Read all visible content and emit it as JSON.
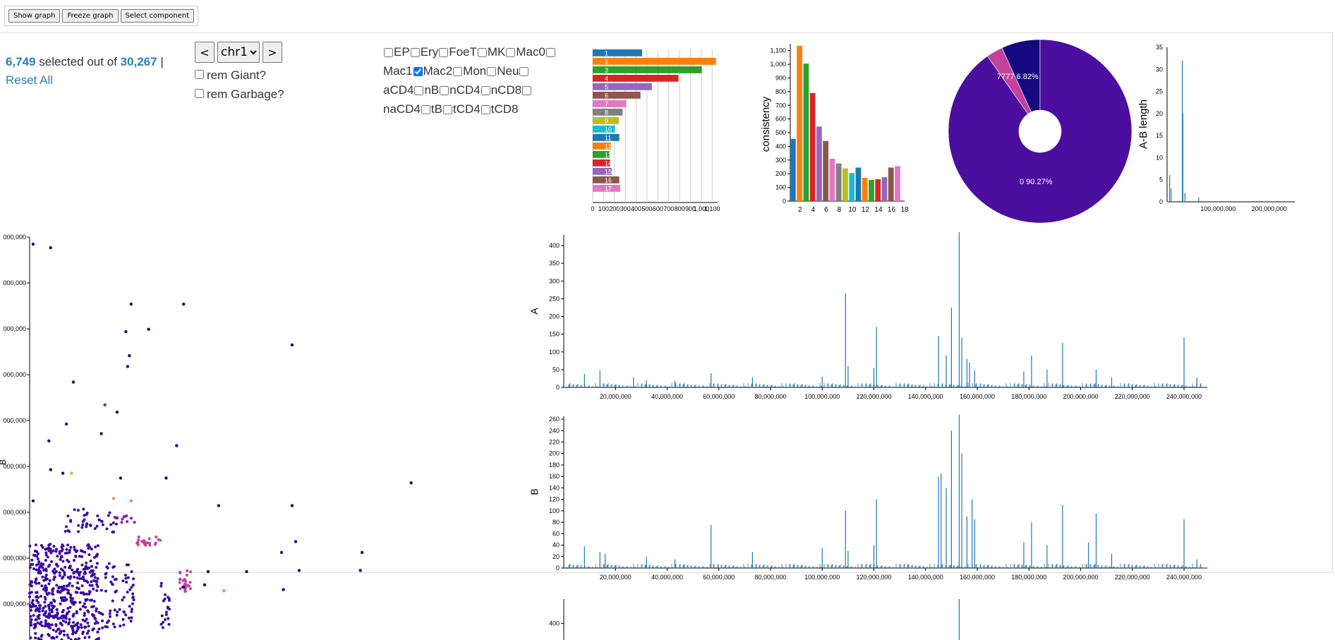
{
  "toolbar": {
    "show_graph": "Show graph",
    "freeze_graph": "Freeze graph",
    "select_component": "Select component"
  },
  "selection": {
    "selected": "6,749",
    "mid": "selected out of",
    "total": "30,267",
    "sep": "|",
    "reset": "Reset All"
  },
  "chrom": {
    "prev": "<",
    "next": ">",
    "value": "chr1"
  },
  "filters": [
    {
      "label": "rem Giant?",
      "checked": false
    },
    {
      "label": "rem Garbage?",
      "checked": false
    }
  ],
  "cell_types": [
    {
      "label": "EP",
      "checked": false
    },
    {
      "label": "Ery",
      "checked": false
    },
    {
      "label": "FoeT",
      "checked": false
    },
    {
      "label": "MK",
      "checked": false
    },
    {
      "label": "Mac0",
      "checked": false
    },
    {
      "label": "Mac1",
      "checked": false
    },
    {
      "label": "Mac2",
      "checked": true
    },
    {
      "label": "Mon",
      "checked": false
    },
    {
      "label": "Neu",
      "checked": false
    },
    {
      "label": "aCD4",
      "checked": false
    },
    {
      "label": "nB",
      "checked": false
    },
    {
      "label": "nCD4",
      "checked": false
    },
    {
      "label": "nCD8",
      "checked": false
    },
    {
      "label": "naCD4",
      "checked": false
    },
    {
      "label": "tB",
      "checked": false
    },
    {
      "label": "tCD4",
      "checked": false
    },
    {
      "label": "tCD8",
      "checked": false
    }
  ],
  "colors": {
    "accent": "#2a7fba",
    "bar_series": "#1f77b4",
    "pie_main": "#4b0e9e",
    "pie_second": "#150a80",
    "palette": [
      "#1f77b4",
      "#ff7f0e",
      "#2ca02c",
      "#d62728",
      "#9467bd",
      "#8c564b",
      "#e377c2",
      "#7f7f7f",
      "#bcbd22",
      "#17becf"
    ]
  },
  "chart_data": [
    {
      "type": "bar",
      "orientation": "horizontal",
      "categories": [
        "1",
        "2",
        "3",
        "4",
        "5",
        "6",
        "7",
        "8",
        "9",
        "10",
        "11",
        "12",
        "13",
        "14",
        "15",
        "16",
        "17"
      ],
      "values": [
        455,
        1135,
        1005,
        790,
        545,
        440,
        310,
        275,
        240,
        205,
        245,
        170,
        155,
        160,
        175,
        245,
        255
      ],
      "xlim": [
        0,
        1150
      ],
      "xticks": [
        "0",
        "100",
        "200",
        "300",
        "400",
        "500",
        "600",
        "700",
        "800",
        "900",
        "1,000",
        "1,100"
      ]
    },
    {
      "type": "bar",
      "ylabel": "consistency",
      "x": [
        1,
        2,
        3,
        4,
        5,
        6,
        7,
        8,
        9,
        10,
        11,
        12,
        13,
        14,
        15,
        16,
        17
      ],
      "values": [
        455,
        1135,
        1005,
        790,
        545,
        440,
        310,
        275,
        240,
        205,
        245,
        170,
        155,
        160,
        175,
        245,
        255
      ],
      "ylim": [
        0,
        1150
      ],
      "yticks": [
        "0",
        "100",
        "200",
        "300",
        "400",
        "500",
        "600",
        "700",
        "800",
        "900",
        "1,000",
        "1,100"
      ],
      "xticks": [
        "2",
        "4",
        "6",
        "8",
        "10",
        "12",
        "14",
        "16",
        "18"
      ]
    },
    {
      "type": "pie",
      "donut": true,
      "slices": [
        {
          "name": "0",
          "value": 90.27,
          "label": "0 90.27%"
        },
        {
          "name": "7777",
          "value": 6.82,
          "label": "7777 6.82%"
        },
        {
          "name": "other",
          "value": 2.91
        }
      ]
    },
    {
      "type": "bar",
      "ylabel": "A-B length",
      "ylim": [
        0,
        35
      ],
      "yticks": [
        "0",
        "5",
        "10",
        "15",
        "20",
        "25",
        "30",
        "35"
      ],
      "xticks": [
        "100,000,000",
        "200,000,000"
      ],
      "spikes": [
        [
          5000000,
          6
        ],
        [
          8000000,
          3
        ],
        [
          30000000,
          32
        ],
        [
          31000000,
          20
        ],
        [
          35000000,
          2
        ],
        [
          62000000,
          1
        ]
      ],
      "xlim": [
        0,
        250000000
      ]
    },
    {
      "type": "bar",
      "ylabel": "A",
      "ylim": [
        0,
        430
      ],
      "yticks": [
        "0",
        "50",
        "100",
        "150",
        "200",
        "250",
        "300",
        "350",
        "400"
      ],
      "xticks": [
        "20,000,000",
        "40,000,000",
        "60,000,000",
        "80,000,000",
        "100,000,000",
        "120,000,000",
        "140,000,000",
        "160,000,000",
        "180,000,000",
        "200,000,000",
        "220,000,000",
        "240,000,000"
      ],
      "xlim": [
        0,
        249000000
      ],
      "spikes": [
        [
          8000000,
          38
        ],
        [
          14000000,
          48
        ],
        [
          27000000,
          28
        ],
        [
          32000000,
          20
        ],
        [
          43000000,
          18
        ],
        [
          57000000,
          40
        ],
        [
          73000000,
          28
        ],
        [
          100000000,
          30
        ],
        [
          109000000,
          265
        ],
        [
          110000000,
          60
        ],
        [
          121000000,
          170
        ],
        [
          120000000,
          55
        ],
        [
          145000000,
          145
        ],
        [
          148000000,
          90
        ],
        [
          150000000,
          225
        ],
        [
          153000000,
          438
        ],
        [
          154000000,
          140
        ],
        [
          156000000,
          80
        ],
        [
          157000000,
          70
        ],
        [
          159000000,
          48
        ],
        [
          178000000,
          45
        ],
        [
          181000000,
          90
        ],
        [
          187000000,
          50
        ],
        [
          193000000,
          125
        ],
        [
          206000000,
          50
        ],
        [
          212000000,
          28
        ],
        [
          240000000,
          140
        ],
        [
          245000000,
          28
        ]
      ]
    },
    {
      "type": "bar",
      "ylabel": "B",
      "ylim": [
        0,
        265
      ],
      "yticks": [
        "0",
        "20",
        "40",
        "60",
        "80",
        "100",
        "120",
        "140",
        "160",
        "180",
        "200",
        "220",
        "240",
        "260"
      ],
      "xticks": [
        "20,000,000",
        "40,000,000",
        "60,000,000",
        "80,000,000",
        "100,000,000",
        "120,000,000",
        "140,000,000",
        "160,000,000",
        "180,000,000",
        "200,000,000",
        "220,000,000",
        "240,000,000"
      ],
      "xlim": [
        0,
        249000000
      ],
      "spikes": [
        [
          8000000,
          38
        ],
        [
          14000000,
          28
        ],
        [
          16000000,
          25
        ],
        [
          32000000,
          20
        ],
        [
          43000000,
          15
        ],
        [
          57000000,
          75
        ],
        [
          73000000,
          28
        ],
        [
          100000000,
          35
        ],
        [
          109000000,
          100
        ],
        [
          110000000,
          30
        ],
        [
          121000000,
          120
        ],
        [
          120000000,
          40
        ],
        [
          145000000,
          160
        ],
        [
          146000000,
          165
        ],
        [
          148000000,
          140
        ],
        [
          150000000,
          240
        ],
        [
          153000000,
          268
        ],
        [
          154000000,
          200
        ],
        [
          156000000,
          90
        ],
        [
          158000000,
          120
        ],
        [
          159000000,
          85
        ],
        [
          178000000,
          45
        ],
        [
          181000000,
          80
        ],
        [
          187000000,
          40
        ],
        [
          193000000,
          110
        ],
        [
          203000000,
          45
        ],
        [
          206000000,
          95
        ],
        [
          212000000,
          25
        ],
        [
          240000000,
          85
        ],
        [
          245000000,
          15
        ]
      ]
    },
    {
      "type": "bar",
      "yticks_visible": [
        "350",
        "400"
      ],
      "ylim": [
        0,
        430
      ],
      "spikes": [
        [
          153000000,
          430
        ]
      ],
      "xlim": [
        0,
        249000000
      ]
    },
    {
      "type": "scatter",
      "ylabel": "B",
      "yticks": [
        "000,000",
        "000,000",
        "000,000",
        "000,000",
        "000,000",
        "000,000",
        "000,000",
        "000,000",
        "000,000"
      ],
      "series_colors": [
        "#3a0ca3",
        "#150a80",
        "#c2439c",
        "#8a1fa0",
        "#ff7f50",
        "#f6a04d"
      ],
      "points": [
        [
          0.2,
          29,
          "#150a80"
        ],
        [
          1.2,
          28.7,
          "#150a80"
        ],
        [
          5.8,
          24,
          "#150a80"
        ],
        [
          8.8,
          24,
          "#150a80"
        ],
        [
          5.5,
          21.7,
          "#150a80"
        ],
        [
          6.8,
          21.9,
          "#150a80"
        ],
        [
          5.7,
          19.7,
          "#150a80"
        ],
        [
          5.6,
          18.8,
          "#150a80"
        ],
        [
          15,
          20.6,
          "#150a80"
        ],
        [
          2.5,
          17.5,
          "#150a80"
        ],
        [
          4.3,
          15.6,
          "#8a1fa0"
        ],
        [
          5,
          15,
          "#150a80"
        ],
        [
          2.1,
          14,
          "#150a80"
        ],
        [
          1.1,
          12.6,
          "#150a80"
        ],
        [
          4.1,
          13.2,
          "#150a80"
        ],
        [
          8.4,
          12.2,
          "#150a80"
        ],
        [
          1.2,
          10.2,
          "#150a80"
        ],
        [
          1.9,
          9.9,
          "#150a80"
        ],
        [
          2.4,
          9.9,
          "#f6a04d"
        ],
        [
          5.2,
          9.5,
          "#150a80"
        ],
        [
          7.8,
          9.5,
          "#150a80"
        ],
        [
          4.8,
          7.8,
          "#ff7f50"
        ],
        [
          5.8,
          7.6,
          "#ff7f50"
        ],
        [
          10.8,
          7.2,
          "#150a80"
        ],
        [
          15,
          7.2,
          "#150a80"
        ],
        [
          21.8,
          9.1,
          "#150a80"
        ],
        [
          0.2,
          7.6,
          "#150a80"
        ],
        [
          15.2,
          4.2,
          "#150a80"
        ],
        [
          14.4,
          3.3,
          "#150a80"
        ],
        [
          19,
          3.3,
          "#150a80"
        ],
        [
          15.4,
          1.8,
          "#150a80"
        ],
        [
          18.9,
          1.8,
          "#150a80"
        ],
        [
          10.2,
          1.7,
          "#150a80"
        ],
        [
          12.4,
          1.7,
          "#150a80"
        ],
        [
          10,
          0.6,
          "#150a80"
        ],
        [
          8.8,
          0.4,
          "#150a80"
        ],
        [
          14.5,
          0.2,
          "#150a80"
        ],
        [
          11.1,
          0.1,
          "#ff7f50"
        ]
      ],
      "clusters": [
        {
          "color": "#3a0ca3",
          "x": [
            0,
            4
          ],
          "y": [
            -4,
            4
          ],
          "n": 420
        },
        {
          "color": "#3a0ca3",
          "x": [
            0.5,
            6
          ],
          "y": [
            -3,
            2.5
          ],
          "n": 160
        },
        {
          "color": "#3a0ca3",
          "x": [
            2,
            5
          ],
          "y": [
            5,
            7
          ],
          "n": 40
        },
        {
          "color": "#c2439c",
          "x": [
            6,
            7.5
          ],
          "y": [
            3.8,
            4.6
          ],
          "n": 22
        },
        {
          "color": "#c2439c",
          "x": [
            8.5,
            9.2
          ],
          "y": [
            0,
            1.8
          ],
          "n": 25
        },
        {
          "color": "#8a1fa0",
          "x": [
            4.8,
            6
          ],
          "y": [
            5.8,
            6.4
          ],
          "n": 12
        },
        {
          "color": "#3a0ca3",
          "x": [
            7.5,
            8
          ],
          "y": [
            -3,
            1.8
          ],
          "n": 20
        }
      ]
    }
  ]
}
